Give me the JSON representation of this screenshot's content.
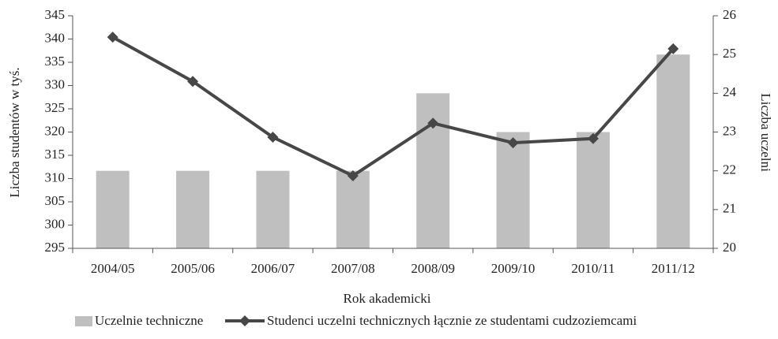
{
  "chart_data": {
    "type": "bar_line",
    "categories": [
      "2004/05",
      "2005/06",
      "2006/07",
      "2007/08",
      "2008/09",
      "2009/10",
      "2010/11",
      "2011/12"
    ],
    "series": [
      {
        "name": "Uczelnie techniczne",
        "type": "bar",
        "axis": "y2",
        "color": "#bfbfbf",
        "values": [
          22,
          22,
          22,
          22,
          24,
          23,
          23,
          25
        ]
      },
      {
        "name": "Studenci uczelni technicznych łącznie ze studentami cudzoziemcami",
        "type": "line",
        "color": "#474747",
        "values": [
          340.4,
          330.9,
          318.9,
          310.6,
          321.9,
          317.7,
          318.6,
          337.9
        ]
      }
    ],
    "xlabel": "Rok akademicki",
    "ylabel": "Liczba studentów w tyś.",
    "y2label": "Liczba uczelni",
    "ylim": [
      295,
      345
    ],
    "yticks": [
      295,
      300,
      305,
      310,
      315,
      320,
      325,
      330,
      335,
      340,
      345
    ],
    "y2lim": [
      20,
      26
    ],
    "y2ticks": [
      20,
      21,
      22,
      23,
      24,
      25,
      26
    ]
  }
}
